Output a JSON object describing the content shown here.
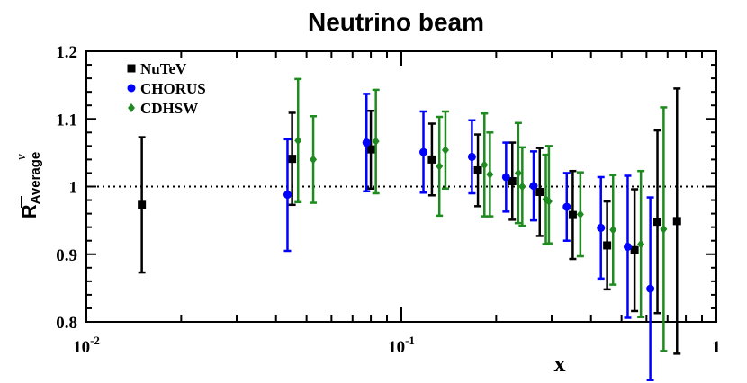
{
  "chart_data": {
    "type": "scatter",
    "title": "Neutrino beam",
    "xlabel": "x",
    "ylabel": {
      "main": "R",
      "superscript": "ν",
      "subscript": "Average"
    },
    "xscale": "log",
    "xlim": [
      0.01,
      1
    ],
    "ylim": [
      0.8,
      1.2
    ],
    "x_ticks": [
      {
        "value": 0.01,
        "base": "10",
        "exp": "-2"
      },
      {
        "value": 0.1,
        "base": "10",
        "exp": "-1"
      },
      {
        "value": 1,
        "base": "1",
        "exp": ""
      }
    ],
    "y_ticks": [
      {
        "value": 0.8,
        "label": "0.8"
      },
      {
        "value": 0.9,
        "label": "0.9"
      },
      {
        "value": 1.0,
        "label": "1"
      },
      {
        "value": 1.1,
        "label": "1.1"
      },
      {
        "value": 1.2,
        "label": "1.2"
      }
    ],
    "reference_line": 1.0,
    "legend_position": "top-left",
    "series": [
      {
        "name": "NuTeV",
        "color": "#000000",
        "marker": "square",
        "points": [
          {
            "x": 0.015,
            "y": 0.973,
            "lo": 0.873,
            "hi": 1.073
          },
          {
            "x": 0.045,
            "y": 1.041,
            "lo": 0.973,
            "hi": 1.109
          },
          {
            "x": 0.08,
            "y": 1.055,
            "lo": 0.997,
            "hi": 1.112
          },
          {
            "x": 0.125,
            "y": 1.04,
            "lo": 0.987,
            "hi": 1.093
          },
          {
            "x": 0.175,
            "y": 1.024,
            "lo": 0.971,
            "hi": 1.077
          },
          {
            "x": 0.225,
            "y": 1.008,
            "lo": 0.951,
            "hi": 1.065
          },
          {
            "x": 0.275,
            "y": 0.992,
            "lo": 0.927,
            "hi": 1.057
          },
          {
            "x": 0.35,
            "y": 0.958,
            "lo": 0.893,
            "hi": 1.023
          },
          {
            "x": 0.45,
            "y": 0.913,
            "lo": 0.848,
            "hi": 0.978
          },
          {
            "x": 0.55,
            "y": 0.906,
            "lo": 0.816,
            "hi": 0.996
          },
          {
            "x": 0.65,
            "y": 0.948,
            "lo": 0.813,
            "hi": 1.083
          },
          {
            "x": 0.75,
            "y": 0.949,
            "lo": 0.753,
            "hi": 1.145
          }
        ]
      },
      {
        "name": "CHORUS",
        "color": "#0000ff",
        "marker": "circle",
        "points": [
          {
            "x": 0.0435,
            "y": 0.988,
            "lo": 0.905,
            "hi": 1.07
          },
          {
            "x": 0.0775,
            "y": 1.065,
            "lo": 0.993,
            "hi": 1.137
          },
          {
            "x": 0.1175,
            "y": 1.051,
            "lo": 0.991,
            "hi": 1.111
          },
          {
            "x": 0.1675,
            "y": 1.044,
            "lo": 0.99,
            "hi": 1.098
          },
          {
            "x": 0.215,
            "y": 1.014,
            "lo": 0.963,
            "hi": 1.065
          },
          {
            "x": 0.263,
            "y": 1.001,
            "lo": 0.95,
            "hi": 1.052
          },
          {
            "x": 0.335,
            "y": 0.97,
            "lo": 0.92,
            "hi": 1.02
          },
          {
            "x": 0.43,
            "y": 0.939,
            "lo": 0.864,
            "hi": 1.014
          },
          {
            "x": 0.523,
            "y": 0.911,
            "lo": 0.806,
            "hi": 1.016
          },
          {
            "x": 0.617,
            "y": 0.849,
            "lo": 0.714,
            "hi": 0.984
          }
        ]
      },
      {
        "name": "CDHSW",
        "color": "#1f8a1f",
        "marker": "diamond",
        "points": [
          {
            "x": 0.047,
            "y": 1.068,
            "lo": 0.977,
            "hi": 1.159
          },
          {
            "x": 0.0525,
            "y": 1.04,
            "lo": 0.976,
            "hi": 1.104
          },
          {
            "x": 0.083,
            "y": 1.067,
            "lo": 0.99,
            "hi": 1.143
          },
          {
            "x": 0.132,
            "y": 1.03,
            "lo": 0.957,
            "hi": 1.103
          },
          {
            "x": 0.138,
            "y": 1.054,
            "lo": 0.997,
            "hi": 1.111
          },
          {
            "x": 0.1835,
            "y": 1.032,
            "lo": 0.956,
            "hi": 1.108
          },
          {
            "x": 0.191,
            "y": 1.018,
            "lo": 0.956,
            "hi": 1.08
          },
          {
            "x": 0.235,
            "y": 1.02,
            "lo": 0.946,
            "hi": 1.094
          },
          {
            "x": 0.242,
            "y": 1.0,
            "lo": 0.942,
            "hi": 1.058
          },
          {
            "x": 0.2875,
            "y": 0.981,
            "lo": 0.915,
            "hi": 1.047
          },
          {
            "x": 0.294,
            "y": 0.978,
            "lo": 0.916,
            "hi": 1.06
          },
          {
            "x": 0.37,
            "y": 0.959,
            "lo": 0.897,
            "hi": 1.021
          },
          {
            "x": 0.47,
            "y": 0.936,
            "lo": 0.855,
            "hi": 1.017
          },
          {
            "x": 0.576,
            "y": 0.915,
            "lo": 0.807,
            "hi": 1.023
          },
          {
            "x": 0.68,
            "y": 0.937,
            "lo": 0.757,
            "hi": 1.117
          }
        ]
      }
    ]
  }
}
